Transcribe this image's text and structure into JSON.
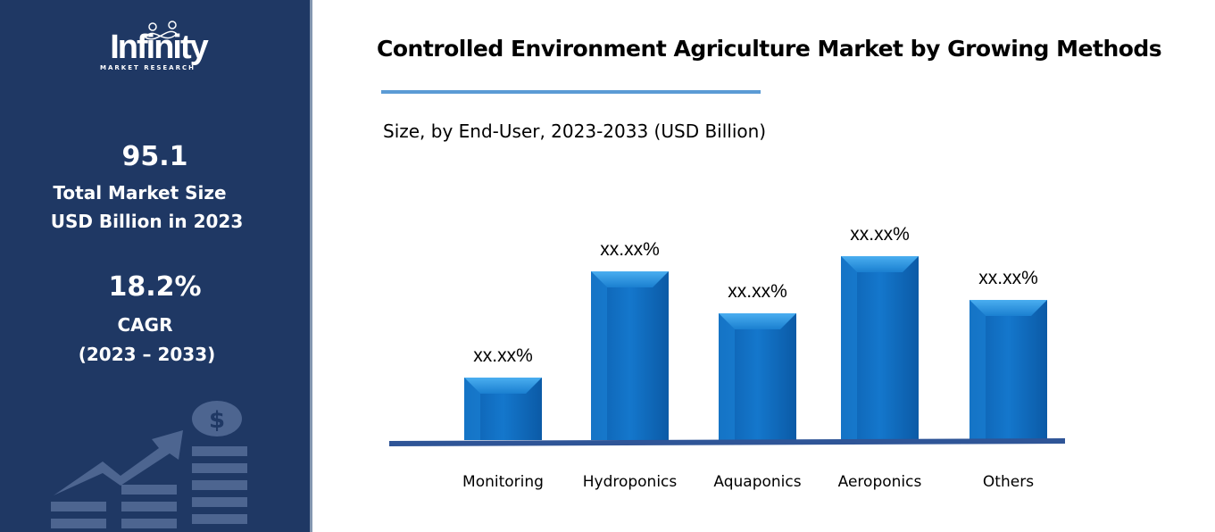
{
  "sidebar": {
    "logo_text": "Infinity",
    "logo_subtext": "MARKET RESEARCH",
    "market_size_value": "95.1",
    "market_size_label_1": "Total Market Size",
    "market_size_label_2": "USD Billion in 2023",
    "cagr_value": "18.2%",
    "cagr_label": "CAGR",
    "cagr_period": "(2023 – 2033)",
    "background_color": "#1f3864",
    "decoration_icon": "growth-chart-dollar-icon"
  },
  "chart_data": {
    "type": "bar",
    "title": "Controlled Environment Agriculture Market by Growing Methods",
    "subtitle": "Size, by End-User, 2023-2033 (USD Billion)",
    "categories": [
      "Monitoring",
      "Hydroponics",
      "Aquaponics",
      "Aeroponics",
      "Others"
    ],
    "values": [
      70,
      189,
      142,
      206,
      157
    ],
    "data_labels": [
      "xx.xx%",
      "xx.xx%",
      "xx.xx%",
      "xx.xx%",
      "xx.xx%"
    ],
    "xlabel": "",
    "ylabel": "",
    "ylim": [
      0,
      206
    ],
    "grid": false,
    "y_axis_shown": false,
    "bar_color": "#0f6fc6",
    "axis_color": "#2f5597"
  }
}
